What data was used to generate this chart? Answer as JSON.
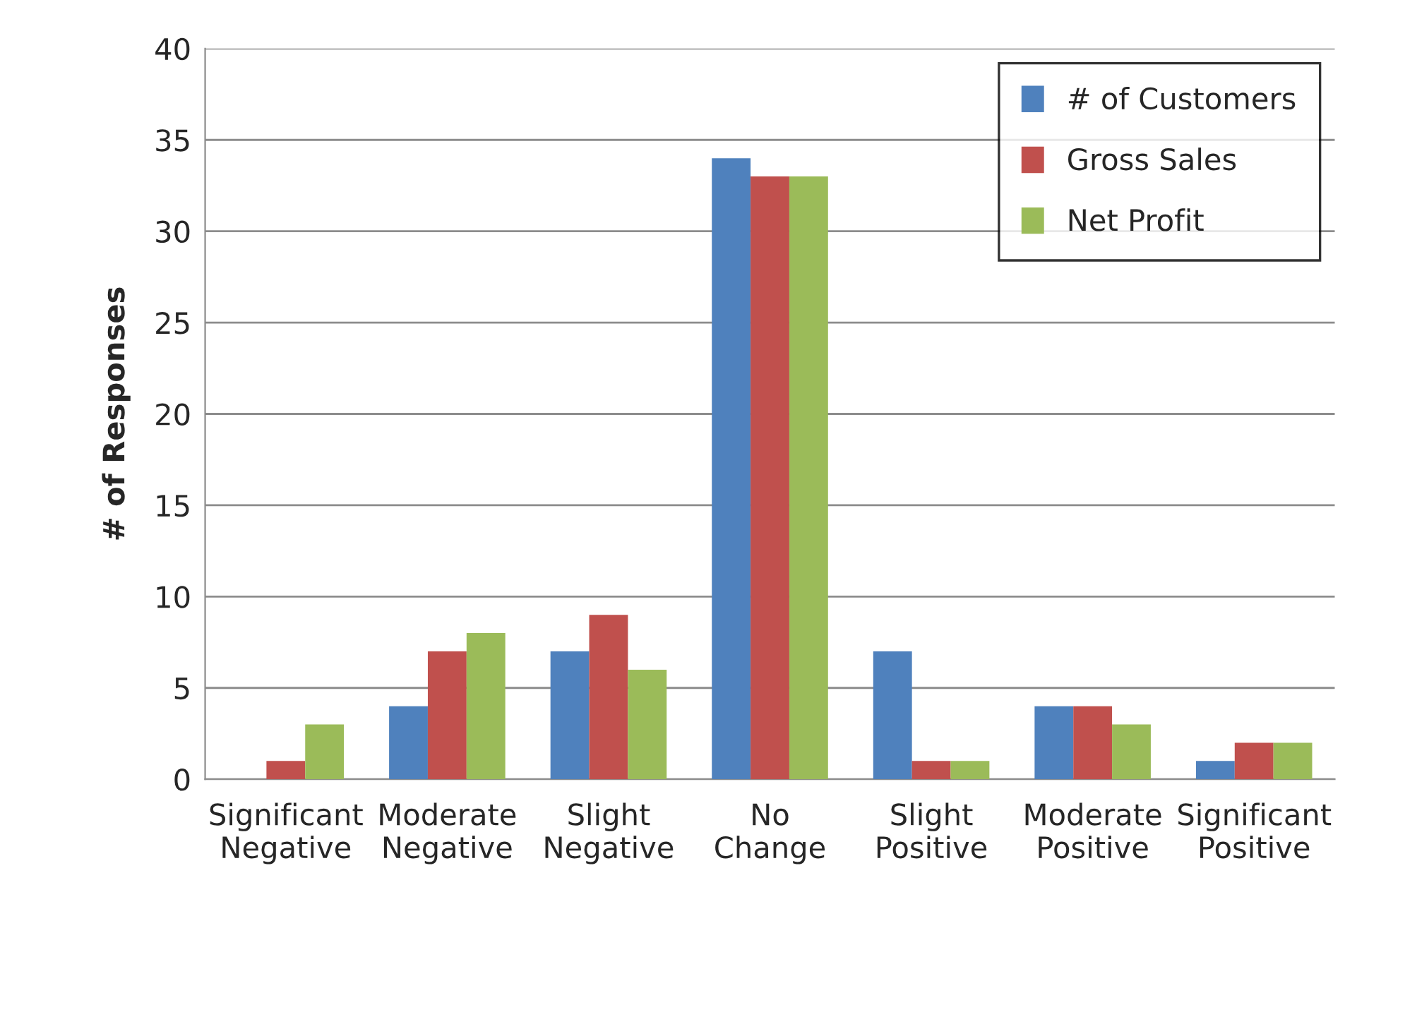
{
  "chart_data": {
    "type": "bar",
    "categories": [
      "Significant\nNegative",
      "Moderate\nNegative",
      "Slight\nNegative",
      "No\nChange",
      "Slight\nPositive",
      "Moderate\nPositive",
      "Significant\nPositive"
    ],
    "series": [
      {
        "name": "# of Customers",
        "color": "#4f81bd",
        "values": [
          0,
          4,
          7,
          34,
          7,
          4,
          1
        ]
      },
      {
        "name": "Gross Sales",
        "color": "#c0504d",
        "values": [
          1,
          7,
          9,
          33,
          1,
          4,
          2
        ]
      },
      {
        "name": "Net Profit",
        "color": "#9bbb59",
        "values": [
          3,
          8,
          6,
          33,
          1,
          3,
          2
        ]
      }
    ],
    "ylabel": "# of Responses",
    "ylim": [
      0,
      40
    ],
    "yticks": [
      0,
      5,
      10,
      15,
      20,
      25,
      30,
      35,
      40
    ],
    "grid": "y",
    "legend": "top right"
  }
}
